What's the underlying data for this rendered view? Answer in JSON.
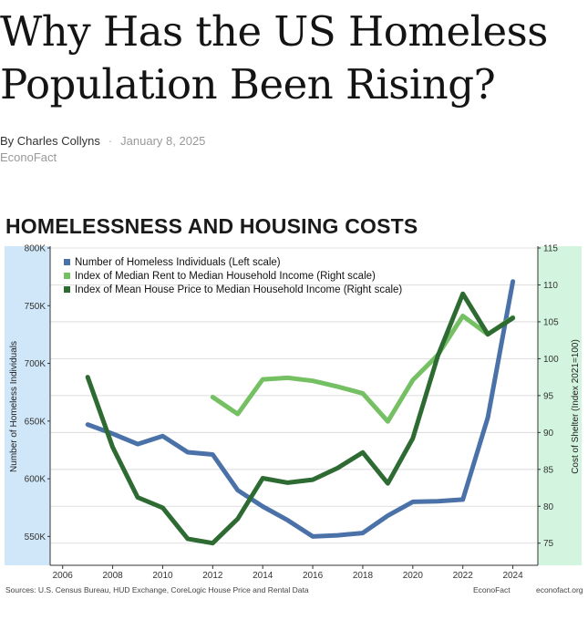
{
  "article": {
    "title": "Why Has the US Homeless Population Been Rising?",
    "author": "By Charles Collyns",
    "separator": "·",
    "date": "January 8, 2025",
    "publication": "EconoFact"
  },
  "chart_data": {
    "type": "line",
    "title": "HOMELESSNESS AND HOUSING COSTS",
    "ylabel_left": "Number of Homeless Individuals",
    "ylabel_right": "Cost of Shelter (Index 2021=100)",
    "x_ticks": [
      "2006",
      "2008",
      "2010",
      "2012",
      "2014",
      "2016",
      "2018",
      "2020",
      "2022",
      "2024"
    ],
    "y_left_ticks": [
      "550K",
      "600K",
      "650K",
      "700K",
      "750K",
      "800K"
    ],
    "y_right_ticks": [
      "75",
      "80",
      "85",
      "90",
      "95",
      "100",
      "105",
      "110",
      "115"
    ],
    "xlim": [
      2005.5,
      2025
    ],
    "ylim_left": [
      525000,
      800000
    ],
    "ylim_right": [
      72,
      115
    ],
    "grid": "horizontal",
    "legend_position": "top-left",
    "series": [
      {
        "name": "Number of Homeless Individuals (Left scale)",
        "axis": "left",
        "color": "#4a72a8",
        "x": [
          2007,
          2008,
          2009,
          2010,
          2011,
          2012,
          2013,
          2014,
          2015,
          2016,
          2017,
          2018,
          2019,
          2020,
          2021,
          2022,
          2023,
          2024
        ],
        "values": [
          647000,
          639000,
          630000,
          637000,
          623000,
          621000,
          590000,
          576000,
          564000,
          550000,
          551000,
          553000,
          568000,
          580000,
          580500,
          582000,
          653000,
          771000
        ]
      },
      {
        "name": "Index of Median Rent to Median Household Income (Right scale)",
        "axis": "right",
        "color": "#74c062",
        "x": [
          2012,
          2013,
          2014,
          2015,
          2016,
          2017,
          2018,
          2019,
          2020,
          2021,
          2022,
          2023,
          2024
        ],
        "values": [
          94.8,
          92.5,
          97.2,
          97.4,
          97.0,
          96.2,
          95.3,
          91.5,
          97.1,
          100.5,
          105.8,
          103.3,
          105.6
        ]
      },
      {
        "name": "Index of Mean House Price to Median Household Income (Right scale)",
        "axis": "right",
        "color": "#2e6b33",
        "x": [
          2007,
          2008,
          2009,
          2010,
          2011,
          2012,
          2013,
          2014,
          2015,
          2016,
          2017,
          2018,
          2019,
          2020,
          2021,
          2022,
          2023,
          2024
        ],
        "values": [
          97.5,
          88.0,
          81.2,
          79.8,
          75.6,
          75.0,
          78.3,
          83.8,
          83.2,
          83.6,
          85.2,
          87.3,
          83.1,
          89.2,
          100.4,
          108.8,
          103.3,
          105.5
        ]
      }
    ],
    "footer": {
      "sources": "Sources: U.S. Census Bureau, HUD Exchange, CoreLogic House Price and Rental Data",
      "brand": "EconoFact",
      "site": "econofact.org"
    }
  },
  "colors": {
    "left_band": "#cfe7f8",
    "right_band": "#d3f5df",
    "gridline": "#d6d6d6",
    "axis": "#333333"
  }
}
